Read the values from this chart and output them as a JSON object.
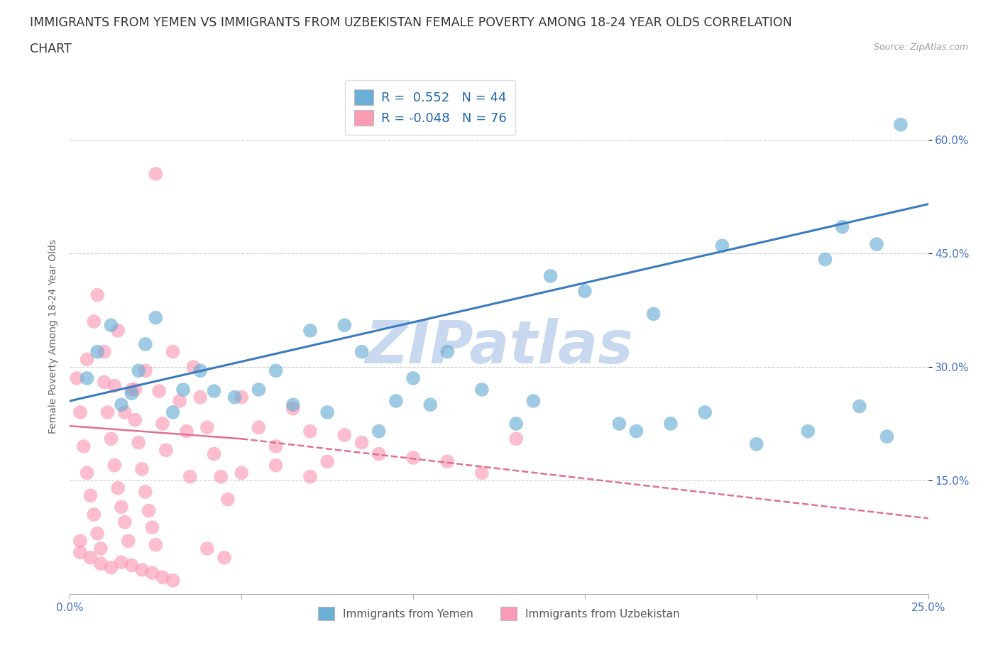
{
  "title_line1": "IMMIGRANTS FROM YEMEN VS IMMIGRANTS FROM UZBEKISTAN FEMALE POVERTY AMONG 18-24 YEAR OLDS CORRELATION",
  "title_line2": "CHART",
  "source": "Source: ZipAtlas.com",
  "ylabel": "Female Poverty Among 18-24 Year Olds",
  "legend1_label": "R =  0.552   N = 44",
  "legend2_label": "R = -0.048   N = 76",
  "legend_bottom1": "Immigrants from Yemen",
  "legend_bottom2": "Immigrants from Uzbekistan",
  "color_yemen": "#6baed6",
  "color_uzbekistan": "#fb9ab4",
  "color_trendline_yemen": "#3a7abf",
  "color_trendline_uzbekistan": "#e07090",
  "watermark": "ZIPatlas",
  "xlim": [
    0,
    0.25
  ],
  "ylim": [
    0.0,
    0.68
  ],
  "xticks": [
    0.0,
    0.05,
    0.1,
    0.15,
    0.2,
    0.25
  ],
  "xticklabels": [
    "0.0%",
    "",
    "",
    "",
    "",
    "25.0%"
  ],
  "yticks": [
    0.15,
    0.3,
    0.45,
    0.6
  ],
  "yticklabels": [
    "15.0%",
    "30.0%",
    "45.0%",
    "60.0%"
  ],
  "yemen_x": [
    0.005,
    0.008,
    0.012,
    0.015,
    0.018,
    0.02,
    0.022,
    0.025,
    0.03,
    0.033,
    0.038,
    0.042,
    0.048,
    0.055,
    0.06,
    0.065,
    0.07,
    0.075,
    0.08,
    0.085,
    0.09,
    0.095,
    0.1,
    0.105,
    0.11,
    0.12,
    0.13,
    0.135,
    0.14,
    0.15,
    0.16,
    0.165,
    0.17,
    0.175,
    0.185,
    0.19,
    0.2,
    0.215,
    0.22,
    0.225,
    0.23,
    0.235,
    0.238,
    0.242
  ],
  "yemen_y": [
    0.285,
    0.32,
    0.355,
    0.25,
    0.265,
    0.295,
    0.33,
    0.365,
    0.24,
    0.27,
    0.295,
    0.268,
    0.26,
    0.27,
    0.295,
    0.25,
    0.348,
    0.24,
    0.355,
    0.32,
    0.215,
    0.255,
    0.285,
    0.25,
    0.32,
    0.27,
    0.225,
    0.255,
    0.42,
    0.4,
    0.225,
    0.215,
    0.37,
    0.225,
    0.24,
    0.46,
    0.198,
    0.215,
    0.442,
    0.485,
    0.248,
    0.462,
    0.208,
    0.62
  ],
  "uzbekistan_x": [
    0.002,
    0.003,
    0.004,
    0.005,
    0.006,
    0.007,
    0.008,
    0.009,
    0.01,
    0.011,
    0.012,
    0.013,
    0.014,
    0.015,
    0.016,
    0.017,
    0.018,
    0.019,
    0.02,
    0.021,
    0.022,
    0.023,
    0.024,
    0.025,
    0.026,
    0.027,
    0.028,
    0.03,
    0.032,
    0.034,
    0.036,
    0.038,
    0.04,
    0.042,
    0.044,
    0.046,
    0.05,
    0.055,
    0.06,
    0.065,
    0.07,
    0.075,
    0.08,
    0.085,
    0.09,
    0.1,
    0.11,
    0.12,
    0.005,
    0.007,
    0.01,
    0.013,
    0.016,
    0.019,
    0.022,
    0.025,
    0.003,
    0.006,
    0.009,
    0.012,
    0.015,
    0.018,
    0.021,
    0.024,
    0.027,
    0.03,
    0.014,
    0.035,
    0.04,
    0.05,
    0.06,
    0.07,
    0.003,
    0.008,
    0.13,
    0.045
  ],
  "uzbekistan_y": [
    0.285,
    0.24,
    0.195,
    0.16,
    0.13,
    0.105,
    0.08,
    0.06,
    0.28,
    0.24,
    0.205,
    0.17,
    0.14,
    0.115,
    0.095,
    0.07,
    0.27,
    0.23,
    0.2,
    0.165,
    0.135,
    0.11,
    0.088,
    0.065,
    0.268,
    0.225,
    0.19,
    0.32,
    0.255,
    0.215,
    0.3,
    0.26,
    0.22,
    0.185,
    0.155,
    0.125,
    0.26,
    0.22,
    0.195,
    0.245,
    0.215,
    0.175,
    0.21,
    0.2,
    0.185,
    0.18,
    0.175,
    0.16,
    0.31,
    0.36,
    0.32,
    0.275,
    0.24,
    0.27,
    0.295,
    0.555,
    0.055,
    0.048,
    0.04,
    0.035,
    0.042,
    0.038,
    0.032,
    0.028,
    0.022,
    0.018,
    0.348,
    0.155,
    0.06,
    0.16,
    0.17,
    0.155,
    0.07,
    0.395,
    0.205,
    0.048
  ],
  "background_color": "#ffffff",
  "grid_color": "#cccccc",
  "title_fontsize": 12.5,
  "axis_label_fontsize": 10,
  "tick_fontsize": 11,
  "tick_color": "#4472c4",
  "watermark_color": "#c8d8ee",
  "watermark_fontsize": 60
}
